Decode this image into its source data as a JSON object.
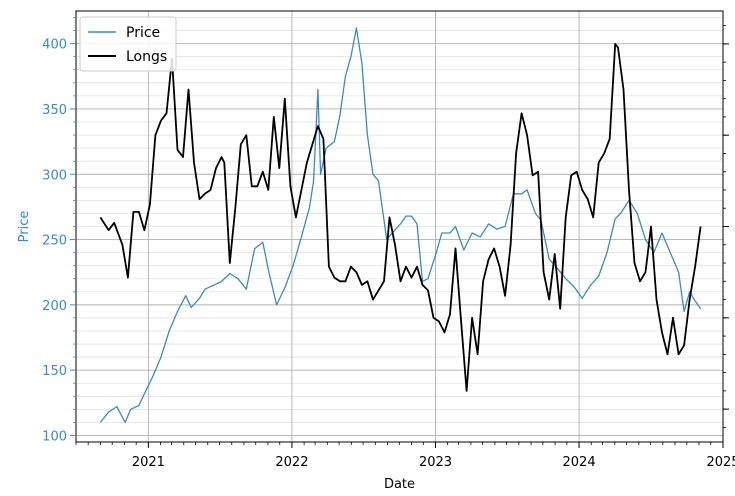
{
  "colors": {
    "price": "#3b8bc2",
    "longs": "#000000",
    "grid": "#b0b0b0",
    "minor_grid": "#e2e2e2"
  },
  "chart_data": {
    "type": "line",
    "xlabel": "Date",
    "ylabel": "Price",
    "x_scale": "date",
    "xlim": [
      "2020-07-01",
      "2025-01-01"
    ],
    "ylim": [
      95,
      425
    ],
    "x_ticks": [
      "2021",
      "2022",
      "2023",
      "2024",
      "2025"
    ],
    "y_ticks": [
      100,
      150,
      200,
      250,
      300,
      350,
      400
    ],
    "grid": true,
    "secondary_y_axis": "right, unlabeled",
    "legend": {
      "position": "top-left",
      "entries": [
        "Price",
        "Longs"
      ]
    },
    "series": [
      {
        "name": "Price",
        "axis": "left",
        "x": [
          "2020-09-01",
          "2020-09-22",
          "2020-10-13",
          "2020-11-03",
          "2020-11-17",
          "2020-12-08",
          "2020-12-22",
          "2021-01-12",
          "2021-02-02",
          "2021-02-23",
          "2021-03-16",
          "2021-04-06",
          "2021-04-20",
          "2021-05-11",
          "2021-05-25",
          "2021-06-15",
          "2021-07-06",
          "2021-07-27",
          "2021-08-17",
          "2021-09-07",
          "2021-09-28",
          "2021-10-19",
          "2021-11-02",
          "2021-11-23",
          "2021-12-14",
          "2022-01-04",
          "2022-01-25",
          "2022-02-15",
          "2022-02-25",
          "2022-03-08",
          "2022-03-15",
          "2022-03-29",
          "2022-04-19",
          "2022-05-03",
          "2022-05-17",
          "2022-05-31",
          "2022-06-14",
          "2022-06-28",
          "2022-07-12",
          "2022-07-26",
          "2022-08-09",
          "2022-08-30",
          "2022-09-13",
          "2022-10-04",
          "2022-10-18",
          "2022-11-01",
          "2022-11-15",
          "2022-11-29",
          "2022-12-13",
          "2023-01-03",
          "2023-01-17",
          "2023-02-07",
          "2023-02-21",
          "2023-03-14",
          "2023-04-04",
          "2023-04-25",
          "2023-05-16",
          "2023-06-06",
          "2023-06-27",
          "2023-07-18",
          "2023-08-08",
          "2023-08-22",
          "2023-09-12",
          "2023-09-26",
          "2023-10-17",
          "2023-11-07",
          "2023-11-28",
          "2023-12-19",
          "2024-01-09",
          "2024-01-30",
          "2024-02-20",
          "2024-03-12",
          "2024-04-02",
          "2024-04-16",
          "2024-05-07",
          "2024-05-28",
          "2024-06-18",
          "2024-07-09",
          "2024-07-30",
          "2024-08-20",
          "2024-09-10",
          "2024-09-24",
          "2024-10-08",
          "2024-10-22",
          "2024-11-05"
        ],
        "values": [
          110,
          118,
          122,
          110,
          120,
          123,
          132,
          145,
          160,
          180,
          195,
          207,
          198,
          205,
          212,
          215,
          218,
          224,
          220,
          212,
          243,
          248,
          227,
          200,
          213,
          230,
          252,
          275,
          295,
          365,
          300,
          320,
          325,
          345,
          375,
          390,
          412,
          385,
          330,
          300,
          295,
          250,
          255,
          262,
          268,
          268,
          262,
          218,
          220,
          240,
          255,
          255,
          260,
          242,
          255,
          252,
          262,
          258,
          260,
          285,
          285,
          288,
          270,
          265,
          235,
          228,
          220,
          214,
          205,
          215,
          222,
          240,
          266,
          270,
          280,
          270,
          250,
          240,
          255,
          240,
          225,
          195,
          210,
          203,
          197
        ],
        "markers": false
      },
      {
        "name": "Longs",
        "axis": "right",
        "x": [
          "2020-09-01",
          "2020-09-22",
          "2020-10-06",
          "2020-10-27",
          "2020-11-10",
          "2020-11-24",
          "2020-12-08",
          "2020-12-22",
          "2021-01-05",
          "2021-01-19",
          "2021-02-02",
          "2021-02-16",
          "2021-03-02",
          "2021-03-16",
          "2021-03-30",
          "2021-04-13",
          "2021-04-27",
          "2021-05-11",
          "2021-05-25",
          "2021-06-08",
          "2021-06-22",
          "2021-07-06",
          "2021-07-13",
          "2021-07-27",
          "2021-08-10",
          "2021-08-24",
          "2021-09-07",
          "2021-09-21",
          "2021-10-05",
          "2021-10-19",
          "2021-11-02",
          "2021-11-16",
          "2021-11-30",
          "2021-12-14",
          "2021-12-28",
          "2022-01-11",
          "2022-01-25",
          "2022-02-08",
          "2022-02-22",
          "2022-03-08",
          "2022-03-22",
          "2022-04-05",
          "2022-04-19",
          "2022-05-03",
          "2022-05-17",
          "2022-05-31",
          "2022-06-14",
          "2022-06-28",
          "2022-07-12",
          "2022-07-26",
          "2022-08-09",
          "2022-08-23",
          "2022-09-06",
          "2022-09-20",
          "2022-10-04",
          "2022-10-18",
          "2022-11-01",
          "2022-11-15",
          "2022-11-29",
          "2022-12-13",
          "2022-12-27",
          "2023-01-10",
          "2023-01-24",
          "2023-02-07",
          "2023-02-21",
          "2023-03-07",
          "2023-03-21",
          "2023-04-04",
          "2023-04-18",
          "2023-05-02",
          "2023-05-16",
          "2023-05-30",
          "2023-06-13",
          "2023-06-27",
          "2023-07-11",
          "2023-07-25",
          "2023-08-08",
          "2023-08-22",
          "2023-09-05",
          "2023-09-19",
          "2023-10-03",
          "2023-10-17",
          "2023-10-31",
          "2023-11-14",
          "2023-11-28",
          "2023-12-12",
          "2023-12-26",
          "2024-01-09",
          "2024-01-23",
          "2024-02-06",
          "2024-02-20",
          "2024-03-05",
          "2024-03-19",
          "2024-04-02",
          "2024-04-09",
          "2024-04-23",
          "2024-05-07",
          "2024-05-21",
          "2024-06-04",
          "2024-06-18",
          "2024-07-02",
          "2024-07-16",
          "2024-07-30",
          "2024-08-13",
          "2024-08-27",
          "2024-09-10",
          "2024-09-24",
          "2024-10-08",
          "2024-10-22",
          "2024-11-05"
        ],
        "values": [
          45,
          38,
          42,
          30,
          12,
          48,
          48,
          38,
          52,
          90,
          98,
          102,
          132,
          82,
          78,
          115,
          75,
          55,
          58,
          60,
          72,
          78,
          75,
          20,
          50,
          85,
          90,
          62,
          62,
          70,
          60,
          100,
          72,
          110,
          62,
          45,
          60,
          75,
          85,
          95,
          88,
          18,
          12,
          10,
          10,
          18,
          15,
          8,
          10,
          0,
          5,
          10,
          45,
          30,
          10,
          18,
          12,
          18,
          8,
          5,
          -10,
          -12,
          -18,
          -8,
          28,
          -12,
          -50,
          -10,
          -30,
          10,
          22,
          28,
          18,
          2,
          30,
          80,
          102,
          90,
          68,
          70,
          15,
          0,
          25,
          -5,
          45,
          68,
          70,
          60,
          55,
          45,
          75,
          80,
          88,
          140,
          138,
          115,
          60,
          20,
          10,
          15,
          40,
          0,
          -18,
          -30,
          -10,
          -30,
          -25,
          0,
          18,
          40
        ],
        "markers": false
      }
    ]
  }
}
